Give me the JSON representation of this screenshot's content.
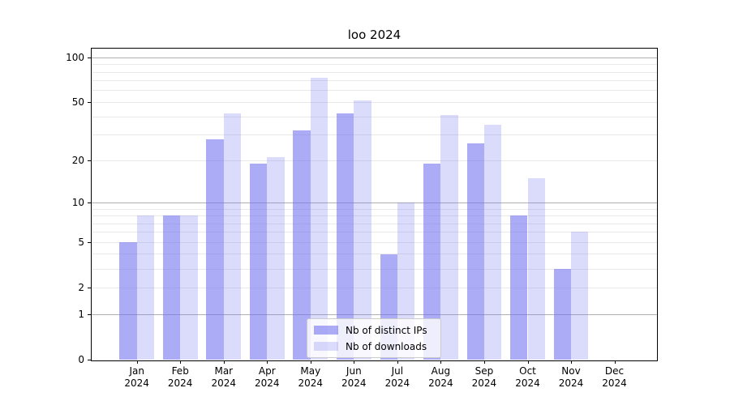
{
  "title": "loo 2024",
  "chart_data": {
    "type": "bar",
    "title": "loo 2024",
    "y_scale": "log10(1+y)",
    "ylim": [
      0,
      115
    ],
    "grid": true,
    "legend_position": "lower center",
    "categories": [
      {
        "month": "Jan",
        "year": "2024"
      },
      {
        "month": "Feb",
        "year": "2024"
      },
      {
        "month": "Mar",
        "year": "2024"
      },
      {
        "month": "Apr",
        "year": "2024"
      },
      {
        "month": "May",
        "year": "2024"
      },
      {
        "month": "Jun",
        "year": "2024"
      },
      {
        "month": "Jul",
        "year": "2024"
      },
      {
        "month": "Aug",
        "year": "2024"
      },
      {
        "month": "Sep",
        "year": "2024"
      },
      {
        "month": "Oct",
        "year": "2024"
      },
      {
        "month": "Nov",
        "year": "2024"
      },
      {
        "month": "Dec",
        "year": "2024"
      }
    ],
    "series": [
      {
        "name": "Nb of distinct IPs",
        "color": "rgba(110,110,240,0.58)",
        "values": [
          5,
          8,
          28,
          19,
          32,
          42,
          4,
          19,
          26,
          8,
          3,
          0
        ]
      },
      {
        "name": "Nb of downloads",
        "color": "rgba(110,110,240,0.25)",
        "values": [
          8,
          8,
          42,
          21,
          73,
          51,
          10,
          41,
          35,
          15,
          6,
          0
        ]
      }
    ],
    "y_tick_labels": [
      "100",
      "50",
      "20",
      "10",
      "5",
      "2",
      "1",
      "0"
    ],
    "y_tick_values": [
      100,
      50,
      20,
      10,
      5,
      2,
      1,
      0
    ],
    "grid_major": [
      1,
      10,
      100
    ],
    "grid_minor": [
      2,
      3,
      4,
      5,
      6,
      7,
      8,
      9,
      20,
      30,
      40,
      50,
      60,
      70,
      80,
      90
    ]
  },
  "colors": {
    "grid_major": "#b0b0b0",
    "grid_minor": "#e9e9e9",
    "spine": "#000000",
    "background": "#ffffff",
    "legend_border": "#cccccc",
    "bar_distinct_ips_flat": "#a9a9f6",
    "bar_downloads_flat": "#d9d9f8"
  }
}
